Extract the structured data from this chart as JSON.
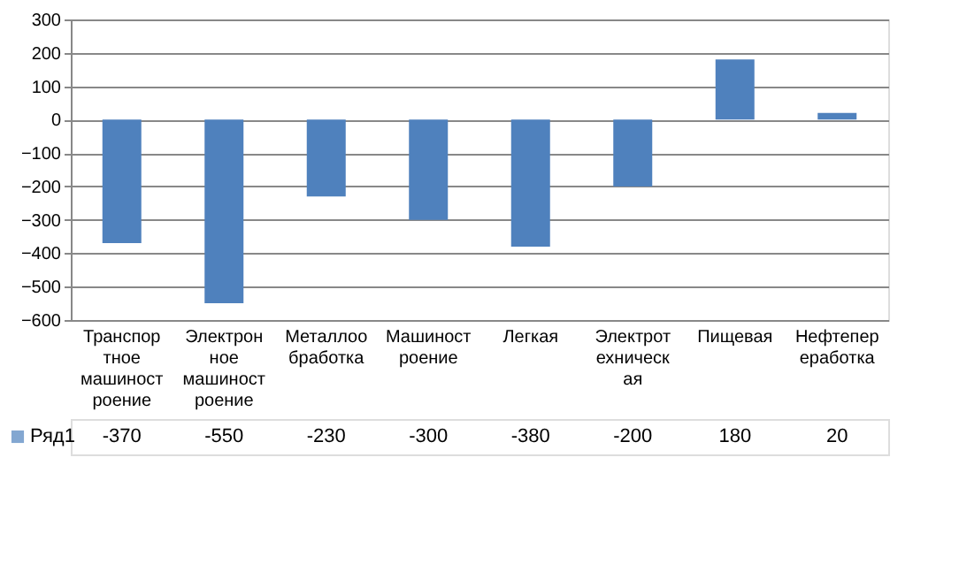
{
  "chart_data": {
    "type": "bar",
    "categories": [
      "Транспортное машиностроение",
      "Электронное машиностроение",
      "Металлообработка",
      "Машиностроение",
      "Легкая",
      "Электротехническая",
      "Пищевая",
      "Нефтепереработка"
    ],
    "series": [
      {
        "name": "Ряд1",
        "color": "#4f81bd",
        "values": [
          -370,
          -550,
          -230,
          -300,
          -380,
          -200,
          180,
          20
        ]
      }
    ],
    "ylim": [
      -600,
      300
    ],
    "yticks": [
      -600,
      -500,
      -400,
      -300,
      -200,
      -100,
      0,
      100,
      200,
      300
    ],
    "grid": "y",
    "legend": "bottom",
    "data_labels": true
  }
}
